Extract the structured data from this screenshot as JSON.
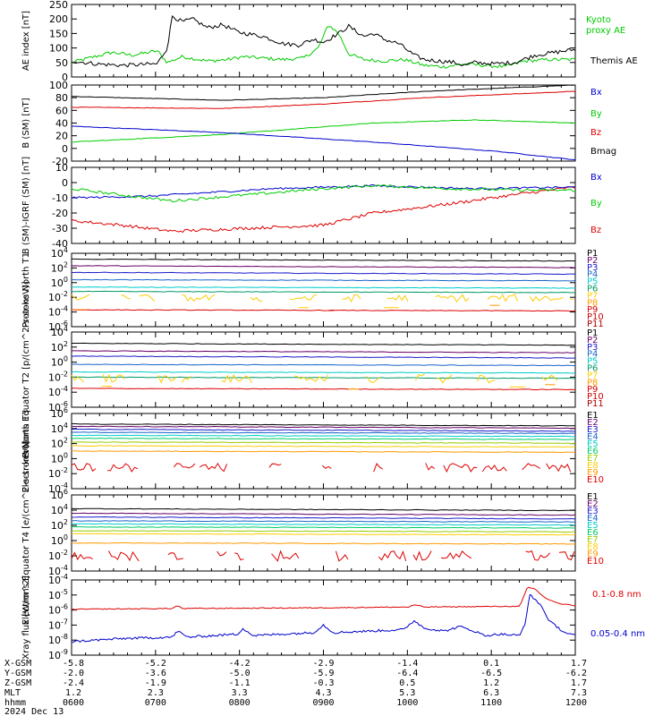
{
  "colors": {
    "black": "#000000",
    "green": "#00cc00",
    "red": "#dd0000",
    "blue": "#0000cc",
    "p_colors": [
      "#000000",
      "#660066",
      "#1a1acc",
      "#1a66cc",
      "#00cccc",
      "#009966",
      "#ffcc00",
      "#ff9900",
      "#dd0000",
      "#cc0000",
      "#aa0000"
    ],
    "e_colors": [
      "#000000",
      "#660066",
      "#1a1acc",
      "#1a66cc",
      "#00cccc",
      "#00cc66",
      "#99cc00",
      "#ffcc00",
      "#ff9900",
      "#dd0000"
    ]
  },
  "chart_data": [
    {
      "type": "line",
      "ylabel": "AE index [nT]",
      "ylim": [
        0,
        250
      ],
      "log": false,
      "yticks": [
        "0",
        "50",
        "100",
        "150",
        "200",
        "250"
      ],
      "series": [
        {
          "name": "Kyoto proxy AE",
          "color_key": "green"
        },
        {
          "name": "Themis AE",
          "color_key": "black"
        }
      ],
      "x": [
        "0600",
        "0700",
        "0800",
        "0900",
        "1000",
        "1100",
        "1200"
      ]
    },
    {
      "type": "line",
      "ylabel": "B (SM) [nT]",
      "ylim": [
        -20,
        100
      ],
      "log": false,
      "yticks": [
        "-20",
        "0",
        "20",
        "40",
        "60",
        "80",
        "100"
      ],
      "series": [
        {
          "name": "Bx",
          "color_key": "blue"
        },
        {
          "name": "By",
          "color_key": "green"
        },
        {
          "name": "Bz",
          "color_key": "red"
        },
        {
          "name": "Bmag",
          "color_key": "black"
        }
      ]
    },
    {
      "type": "line",
      "ylabel": "B (SM)-IGRF (SM) [nT]",
      "ylim": [
        -40,
        10
      ],
      "log": false,
      "yticks": [
        "-40",
        "-30",
        "-20",
        "-10",
        "0",
        "10"
      ],
      "series": [
        {
          "name": "Bx",
          "color_key": "blue"
        },
        {
          "name": "By",
          "color_key": "green"
        },
        {
          "name": "Bz",
          "color_key": "red"
        }
      ]
    },
    {
      "type": "line",
      "ylabel": "Protons North T1",
      "log": true,
      "yticks": [
        "10^-6",
        "10^-4",
        "10^-2",
        "10^0",
        "10^2",
        "10^4"
      ],
      "channels": [
        "P1",
        "P2",
        "P3",
        "P4",
        "P5",
        "P6",
        "P7",
        "P8",
        "P9",
        "P10",
        "P11"
      ]
    },
    {
      "type": "line",
      "ylabel": "Protons Equator T2 [p/(cm^2-s-sr-keV)]",
      "log": true,
      "yticks": [
        "10^-6",
        "10^-4",
        "10^-2",
        "10^0",
        "10^2",
        "10^4"
      ],
      "channels": [
        "P1",
        "P2",
        "P3",
        "P4",
        "P5",
        "P6",
        "P7",
        "P8",
        "P9",
        "P10",
        "P11"
      ]
    },
    {
      "type": "line",
      "ylabel": "Electrons North T3",
      "log": true,
      "yticks": [
        "10^-4",
        "10^-2",
        "10^0",
        "10^2",
        "10^4",
        "10^6"
      ],
      "channels": [
        "E1",
        "E2",
        "E3",
        "E4",
        "E5",
        "E6",
        "E7",
        "E8",
        "E9",
        "E10"
      ]
    },
    {
      "type": "line",
      "ylabel": "Electrons Equator T4 [e/(cm^2-s-sr-keV)]",
      "log": true,
      "yticks": [
        "10^-4",
        "10^-2",
        "10^0",
        "10^2",
        "10^4",
        "10^6"
      ],
      "channels": [
        "E1",
        "E2",
        "E3",
        "E4",
        "E5",
        "E6",
        "E7",
        "E8",
        "E9",
        "E10"
      ]
    },
    {
      "type": "line",
      "ylabel": "Xray flux [W/m^2]",
      "log": true,
      "yticks": [
        "10^-9",
        "10^-8",
        "10^-7",
        "10^-6",
        "10^-5",
        "10^-4"
      ],
      "series": [
        {
          "name": "0.1-0.8 nm",
          "color_key": "red"
        },
        {
          "name": "0.05-0.4 nm",
          "color_key": "blue"
        }
      ]
    }
  ],
  "footer": {
    "row_labels": [
      "X-GSM",
      "Y-GSM",
      "Z-GSM",
      "MLT",
      "hhmm",
      "2024 Dec 13"
    ],
    "columns": [
      {
        "x_gsm": "-5.8",
        "y_gsm": "-2.0",
        "z_gsm": "-2.4",
        "mlt": "1.2",
        "hhmm": "0600"
      },
      {
        "x_gsm": "-5.2",
        "y_gsm": "-3.6",
        "z_gsm": "-1.9",
        "mlt": "2.3",
        "hhmm": "0700"
      },
      {
        "x_gsm": "-4.2",
        "y_gsm": "-5.0",
        "z_gsm": "-1.1",
        "mlt": "3.3",
        "hhmm": "0800"
      },
      {
        "x_gsm": "-2.9",
        "y_gsm": "-5.9",
        "z_gsm": "-0.3",
        "mlt": "4.3",
        "hhmm": "0900"
      },
      {
        "x_gsm": "-1.4",
        "y_gsm": "-6.4",
        "z_gsm": "0.5",
        "mlt": "5.3",
        "hhmm": "1000"
      },
      {
        "x_gsm": "0.1",
        "y_gsm": "-6.5",
        "z_gsm": "1.2",
        "mlt": "6.3",
        "hhmm": "1100"
      },
      {
        "x_gsm": "1.7",
        "y_gsm": "-6.2",
        "z_gsm": "1.7",
        "mlt": "7.3",
        "hhmm": "1200"
      }
    ]
  }
}
